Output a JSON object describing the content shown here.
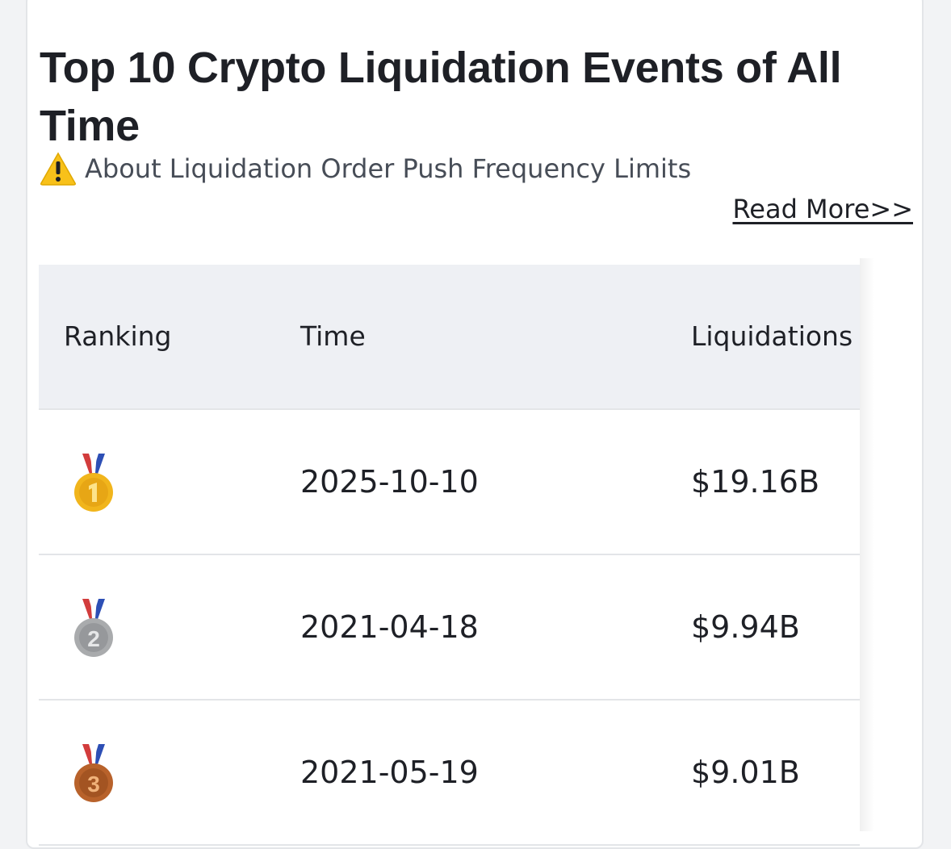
{
  "header": {
    "title": "Top 10 Crypto Liquidation Events of All Time",
    "notice_text": "About Liquidation Order Push Frequency Limits",
    "read_more": "Read More>>"
  },
  "table": {
    "columns": [
      "Ranking",
      "Time",
      "Liquidations"
    ],
    "rows": [
      {
        "rank": "1",
        "time": "2025-10-10",
        "liquidations": "$19.16B"
      },
      {
        "rank": "2",
        "time": "2021-04-18",
        "liquidations": "$9.94B"
      },
      {
        "rank": "3",
        "time": "2021-05-19",
        "liquidations": "$9.01B"
      }
    ]
  },
  "icons": {
    "notice": "warning-icon",
    "medals": [
      "gold-medal-icon",
      "silver-medal-icon",
      "bronze-medal-icon"
    ]
  },
  "colors": {
    "header_bg": "#eef0f4",
    "warning": "#f8c11a",
    "gold": "#f1b51c",
    "silver": "#a9abad",
    "bronze": "#b8622b"
  }
}
